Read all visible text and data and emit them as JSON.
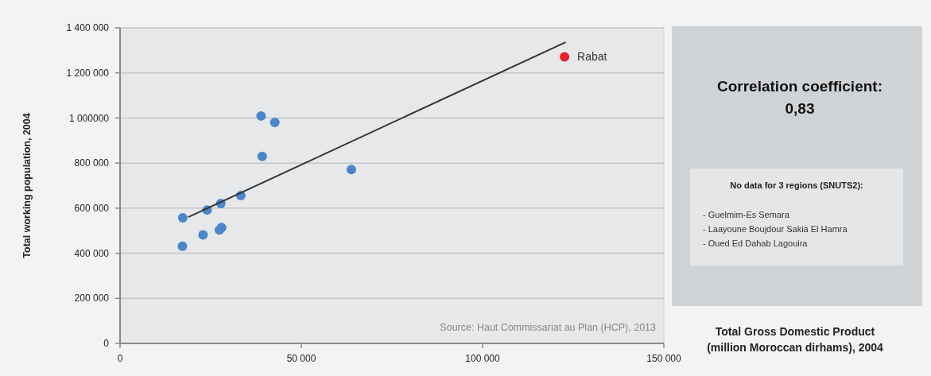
{
  "chart_data": {
    "type": "scatter",
    "xlabel": "Total Gross Domestic Product\n(million Moroccan dirhams), 2004",
    "ylabel": "Total working population, 2004",
    "xlim": [
      0,
      150000
    ],
    "xticks": [
      0,
      {
        "value": 50000,
        "label": "50 000"
      },
      {
        "value": 100000,
        "label": "100 000"
      },
      {
        "value": 150000,
        "label": "150 000"
      }
    ],
    "ylim": [
      0,
      1400000
    ],
    "yticks": [
      0,
      {
        "value": 200000,
        "label": "200 000"
      },
      {
        "value": 400000,
        "label": "400 000"
      },
      {
        "value": 600000,
        "label": "600 000"
      },
      {
        "value": 800000,
        "label": "800 000"
      },
      {
        "value": 1000000,
        "label": "1 000000"
      },
      {
        "value": 1200000,
        "label": "1 200 000"
      },
      {
        "value": 1400000,
        "label": "1 400 000"
      }
    ],
    "grid": "y",
    "series": [
      {
        "color": "#4a86c8",
        "x": [
          17300,
          17200,
          22900,
          24000,
          27800,
          27400,
          28000,
          33300,
          38900,
          42700,
          39200,
          63800
        ],
        "values": [
          557000,
          431000,
          481000,
          592000,
          621000,
          503000,
          514000,
          656000,
          1009000,
          980000,
          830000,
          771000
        ]
      },
      {
        "name": "Rabat",
        "color": "#e8202a",
        "x": [
          122600
        ],
        "values": [
          1271000
        ]
      },
      {
        "type": "line",
        "color": "#333333",
        "x": [
          18800,
          122900
        ],
        "values": [
          560000,
          1336000
        ]
      }
    ],
    "annotations": [
      "Source: Haut Commissariat au Plan (HCP), 2013",
      "Correlation coefficient:\n0,83",
      "No data for 3 regions (SNUTS2):",
      "- Guelmim-Es Semara",
      "- Laayoune Boujdour Sakia El Hamra",
      "- Oued Ed Dahab Lagouira"
    ]
  }
}
